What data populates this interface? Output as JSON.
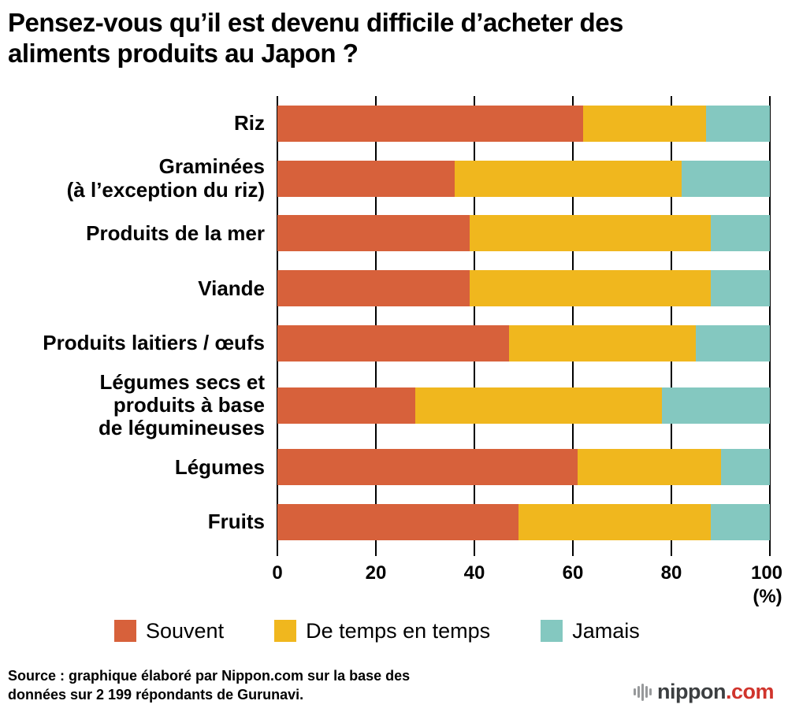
{
  "title": "Pensez-vous qu’il est devenu difficile d’acheter des\naliments produits au Japon ?",
  "chart_data": {
    "type": "bar",
    "orientation": "horizontal",
    "stacked": true,
    "unit_label": "(%)",
    "xlim": [
      0,
      100
    ],
    "x_ticks": [
      0,
      20,
      40,
      60,
      80,
      100
    ],
    "grid": true,
    "legend_position": "bottom",
    "categories": [
      "Riz",
      "Graminées\n(à l’exception du riz)",
      "Produits de la mer",
      "Viande",
      "Produits laitiers / œufs",
      "Légumes secs et\nproduits à base\nde légumineuses",
      "Légumes",
      "Fruits"
    ],
    "series": [
      {
        "name": "Souvent",
        "key": "souvent",
        "color": "#d7613b",
        "values": [
          62,
          36,
          39,
          39,
          47,
          28,
          61,
          49
        ]
      },
      {
        "name": "De temps en temps",
        "key": "de-temps-en-temps",
        "color": "#f0b71e",
        "values": [
          25,
          46,
          49,
          49,
          38,
          50,
          29,
          39
        ]
      },
      {
        "name": "Jamais",
        "key": "jamais",
        "color": "#84c8c0",
        "values": [
          13,
          18,
          12,
          12,
          15,
          22,
          10,
          12
        ]
      }
    ]
  },
  "source": "Source : graphique élaboré par Nippon.com sur la base des\ndonnées sur 2 199 répondants de Gurunavi.",
  "logo": {
    "name": "nippon",
    "domain": ".com"
  }
}
